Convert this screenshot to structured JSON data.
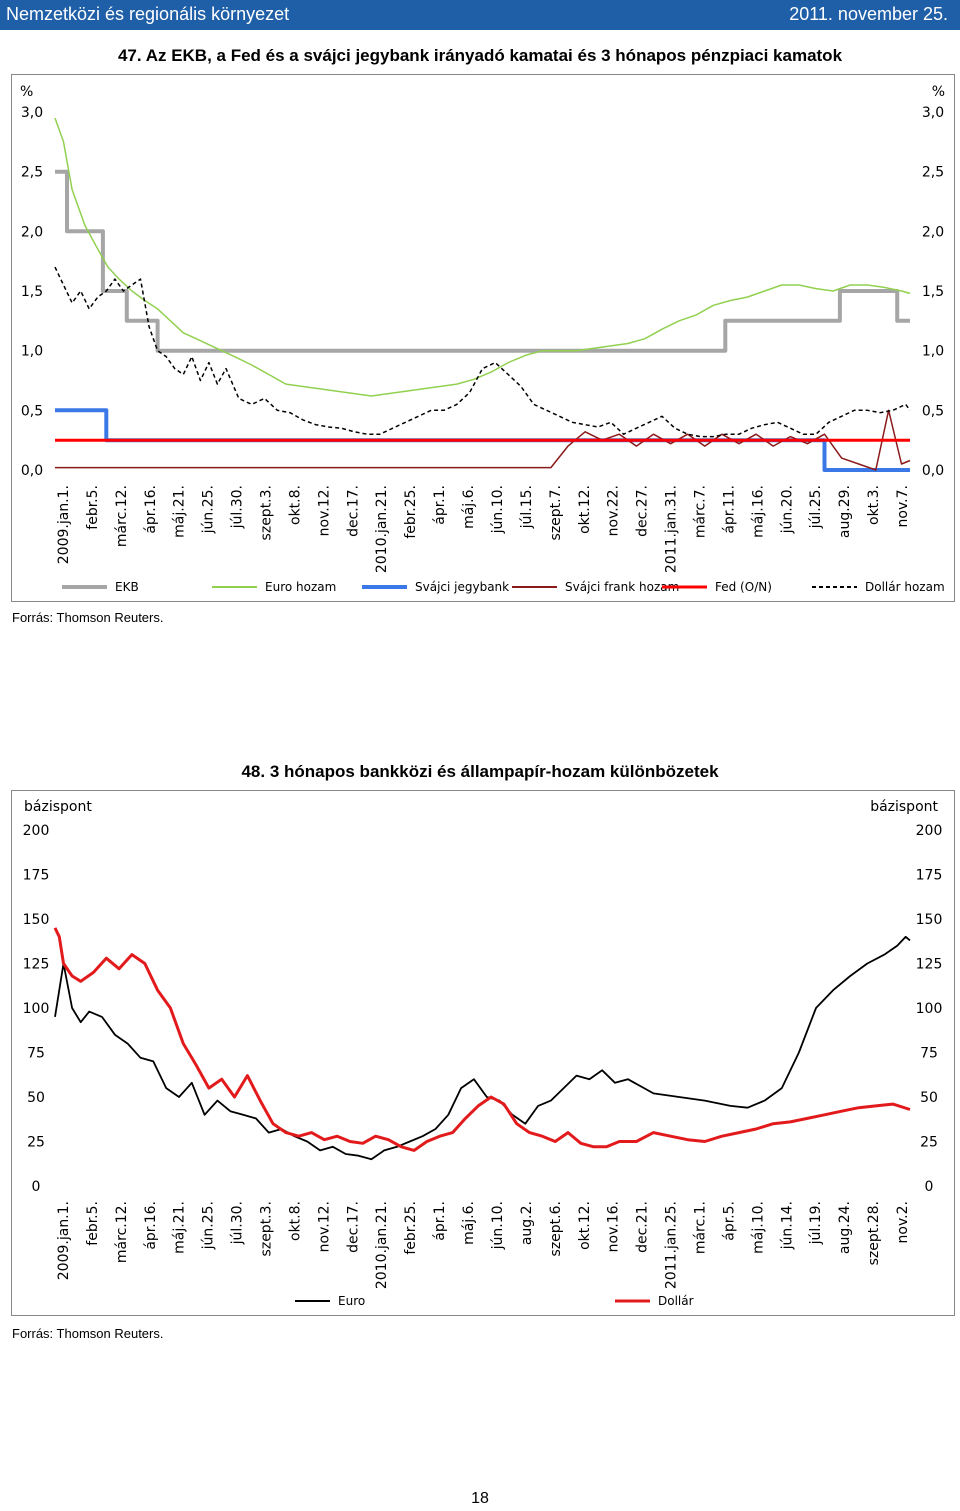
{
  "header": {
    "left": "Nemzetközi és regionális környezet",
    "right": "2011. november 25."
  },
  "page_number": "18",
  "chart_data": [
    {
      "type": "line",
      "title": "47. Az EKB, a Fed és a svájci jegybank irányadó kamatai és 3 hónapos pénzpiaci kamatok",
      "ylabel_left": "%",
      "ylabel_right": "%",
      "ylim": [
        0,
        3
      ],
      "yticks": [
        "0,0",
        "0,5",
        "1,0",
        "1,5",
        "2,0",
        "2,5",
        "3,0"
      ],
      "x_range": [
        0,
        1000
      ],
      "categories": [
        "2009.jan.1.",
        "febr.5.",
        "márc.12.",
        "ápr.16.",
        "máj.21.",
        "jún.25.",
        "júl.30.",
        "szept.3.",
        "okt.8.",
        "nov.12.",
        "dec.17.",
        "2010.jan.21.",
        "febr.25.",
        "ápr.1.",
        "máj.6.",
        "jún.10.",
        "júl.15.",
        "szept.7.",
        "okt.12.",
        "nov.22.",
        "dec.27.",
        "2011.jan.31.",
        "márc.7.",
        "ápr.11.",
        "máj.16.",
        "jún.20.",
        "júl.25.",
        "aug.29.",
        "okt.3.",
        "nov.7."
      ],
      "series": [
        {
          "name": "EKB",
          "color": "#a6a6a6",
          "width": 4,
          "x": [
            0,
            14,
            14,
            56,
            56,
            84,
            84,
            120,
            120,
            189,
            189,
            784,
            784,
            918,
            918,
            985,
            985,
            1000
          ],
          "y": [
            2.5,
            2.5,
            2.0,
            2.0,
            1.5,
            1.5,
            1.25,
            1.25,
            1.0,
            1.0,
            1.0,
            1.0,
            1.25,
            1.25,
            1.5,
            1.5,
            1.25,
            1.25
          ]
        },
        {
          "name": "Euro hozam",
          "color": "#92d050",
          "width": 1.5,
          "x": [
            0,
            10,
            20,
            35,
            50,
            62,
            75,
            90,
            105,
            120,
            135,
            150,
            165,
            180,
            195,
            210,
            230,
            250,
            270,
            290,
            310,
            330,
            350,
            370,
            390,
            410,
            430,
            450,
            470,
            490,
            510,
            530,
            550,
            570,
            590,
            610,
            630,
            650,
            670,
            690,
            710,
            730,
            750,
            770,
            790,
            810,
            830,
            850,
            870,
            890,
            910,
            930,
            950,
            970,
            990,
            1000
          ],
          "y": [
            2.95,
            2.75,
            2.35,
            2.05,
            1.85,
            1.7,
            1.6,
            1.5,
            1.42,
            1.35,
            1.25,
            1.15,
            1.1,
            1.05,
            1.0,
            0.95,
            0.88,
            0.8,
            0.72,
            0.7,
            0.68,
            0.66,
            0.64,
            0.62,
            0.64,
            0.66,
            0.68,
            0.7,
            0.72,
            0.76,
            0.82,
            0.9,
            0.96,
            1.0,
            1.0,
            1.0,
            1.02,
            1.04,
            1.06,
            1.1,
            1.18,
            1.25,
            1.3,
            1.38,
            1.42,
            1.45,
            1.5,
            1.55,
            1.55,
            1.52,
            1.5,
            1.55,
            1.55,
            1.53,
            1.5,
            1.48
          ]
        },
        {
          "name": "Svájci jegybank",
          "color": "#3b78e7",
          "width": 4,
          "x": [
            0,
            60,
            60,
            900,
            900,
            1000
          ],
          "y": [
            0.5,
            0.5,
            0.25,
            0.25,
            0.0,
            0.0
          ]
        },
        {
          "name": "Svájci frank hozam",
          "color": "#8b1a1a",
          "width": 1.5,
          "x": [
            0,
            580,
            600,
            620,
            640,
            660,
            680,
            700,
            720,
            740,
            760,
            780,
            800,
            820,
            840,
            860,
            880,
            900,
            920,
            940,
            960,
            975,
            990,
            1000
          ],
          "y": [
            0.02,
            0.02,
            0.2,
            0.32,
            0.25,
            0.3,
            0.2,
            0.3,
            0.22,
            0.3,
            0.2,
            0.3,
            0.22,
            0.3,
            0.2,
            0.28,
            0.22,
            0.3,
            0.1,
            0.05,
            0.0,
            0.5,
            0.05,
            0.08
          ]
        },
        {
          "name": "Fed (O/N)",
          "color": "#ff0000",
          "width": 3,
          "x": [
            0,
            1000
          ],
          "y": [
            0.25,
            0.25
          ]
        },
        {
          "name": "Dollár hozam",
          "color": "#000000",
          "width": 1.5,
          "dash": "4,3",
          "x": [
            0,
            10,
            20,
            30,
            40,
            50,
            60,
            70,
            80,
            90,
            100,
            110,
            120,
            130,
            140,
            150,
            160,
            170,
            180,
            190,
            200,
            215,
            230,
            245,
            260,
            275,
            290,
            305,
            320,
            335,
            350,
            365,
            380,
            395,
            410,
            425,
            440,
            455,
            470,
            485,
            500,
            515,
            530,
            545,
            560,
            575,
            590,
            605,
            620,
            635,
            650,
            665,
            680,
            695,
            710,
            725,
            740,
            755,
            770,
            785,
            800,
            815,
            830,
            845,
            860,
            875,
            890,
            905,
            920,
            935,
            950,
            965,
            980,
            995,
            1000
          ],
          "y": [
            1.7,
            1.55,
            1.4,
            1.5,
            1.35,
            1.45,
            1.5,
            1.6,
            1.5,
            1.55,
            1.6,
            1.2,
            1.0,
            0.95,
            0.85,
            0.8,
            0.95,
            0.75,
            0.9,
            0.72,
            0.85,
            0.6,
            0.55,
            0.6,
            0.5,
            0.48,
            0.42,
            0.38,
            0.36,
            0.35,
            0.32,
            0.3,
            0.3,
            0.35,
            0.4,
            0.45,
            0.5,
            0.5,
            0.55,
            0.65,
            0.85,
            0.9,
            0.8,
            0.7,
            0.55,
            0.5,
            0.45,
            0.4,
            0.38,
            0.36,
            0.4,
            0.3,
            0.35,
            0.4,
            0.45,
            0.35,
            0.3,
            0.28,
            0.28,
            0.3,
            0.3,
            0.35,
            0.38,
            0.4,
            0.35,
            0.3,
            0.3,
            0.4,
            0.45,
            0.5,
            0.5,
            0.48,
            0.5,
            0.55,
            0.5
          ]
        }
      ],
      "legend": [
        "EKB",
        "Euro hozam",
        "Svájci jegybank",
        "Svájci frank hozam",
        "Fed (O/N)",
        "Dollár hozam"
      ],
      "source": "Forrás: Thomson Reuters."
    },
    {
      "type": "line",
      "title": "48. 3 hónapos bankközi és állampapír-hozam különbözetek",
      "ylabel_left": "bázispont",
      "ylabel_right": "bázispont",
      "ylim": [
        0,
        200
      ],
      "yticks": [
        "0",
        "25",
        "50",
        "75",
        "100",
        "125",
        "150",
        "175",
        "200"
      ],
      "x_range": [
        0,
        1000
      ],
      "categories": [
        "2009.jan.1.",
        "febr.5.",
        "márc.12.",
        "ápr.16.",
        "máj.21.",
        "jún.25.",
        "júl.30.",
        "szept.3.",
        "okt.8.",
        "nov.12.",
        "dec.17.",
        "2010.jan.21.",
        "febr.25.",
        "ápr.1.",
        "máj.6.",
        "jún.10.",
        "aug.2.",
        "szept.6.",
        "okt.12.",
        "nov.16.",
        "dec.21.",
        "2011.jan.25.",
        "márc.1.",
        "ápr.5.",
        "máj.10.",
        "jún.14.",
        "júl.19.",
        "aug.24.",
        "szept.28.",
        "nov.2."
      ],
      "series": [
        {
          "name": "Euro",
          "color": "#000000",
          "width": 1.8,
          "x": [
            0,
            10,
            20,
            30,
            40,
            55,
            70,
            85,
            100,
            115,
            130,
            145,
            160,
            175,
            190,
            205,
            220,
            235,
            250,
            265,
            280,
            295,
            310,
            325,
            340,
            355,
            370,
            385,
            400,
            415,
            430,
            445,
            460,
            475,
            490,
            505,
            520,
            535,
            550,
            565,
            580,
            595,
            610,
            625,
            640,
            655,
            670,
            700,
            730,
            760,
            790,
            810,
            830,
            850,
            870,
            890,
            910,
            930,
            950,
            970,
            985,
            995,
            1000
          ],
          "y": [
            95,
            125,
            100,
            92,
            98,
            95,
            85,
            80,
            72,
            70,
            55,
            50,
            58,
            40,
            48,
            42,
            40,
            38,
            30,
            32,
            28,
            25,
            20,
            22,
            18,
            17,
            15,
            20,
            22,
            25,
            28,
            32,
            40,
            55,
            60,
            50,
            48,
            40,
            35,
            45,
            48,
            55,
            62,
            60,
            65,
            58,
            60,
            52,
            50,
            48,
            45,
            44,
            48,
            55,
            75,
            100,
            110,
            118,
            125,
            130,
            135,
            140,
            138
          ]
        },
        {
          "name": "Dollár",
          "color": "#e31a1c",
          "width": 3,
          "x": [
            0,
            5,
            10,
            20,
            30,
            45,
            60,
            75,
            90,
            105,
            120,
            135,
            150,
            165,
            180,
            195,
            210,
            225,
            240,
            255,
            270,
            285,
            300,
            315,
            330,
            345,
            360,
            375,
            390,
            405,
            420,
            435,
            450,
            465,
            480,
            495,
            510,
            525,
            540,
            555,
            570,
            585,
            600,
            615,
            630,
            645,
            660,
            680,
            700,
            720,
            740,
            760,
            780,
            800,
            820,
            840,
            860,
            880,
            900,
            920,
            940,
            960,
            980,
            1000
          ],
          "y": [
            145,
            140,
            125,
            118,
            115,
            120,
            128,
            122,
            130,
            125,
            110,
            100,
            80,
            68,
            55,
            60,
            50,
            62,
            48,
            35,
            30,
            28,
            30,
            26,
            28,
            25,
            24,
            28,
            26,
            22,
            20,
            25,
            28,
            30,
            38,
            45,
            50,
            46,
            35,
            30,
            28,
            25,
            30,
            24,
            22,
            22,
            25,
            25,
            30,
            28,
            26,
            25,
            28,
            30,
            32,
            35,
            36,
            38,
            40,
            42,
            44,
            45,
            46,
            43
          ]
        }
      ],
      "legend": [
        "Euro",
        "Dollár"
      ],
      "source": "Forrás: Thomson Reuters."
    }
  ]
}
